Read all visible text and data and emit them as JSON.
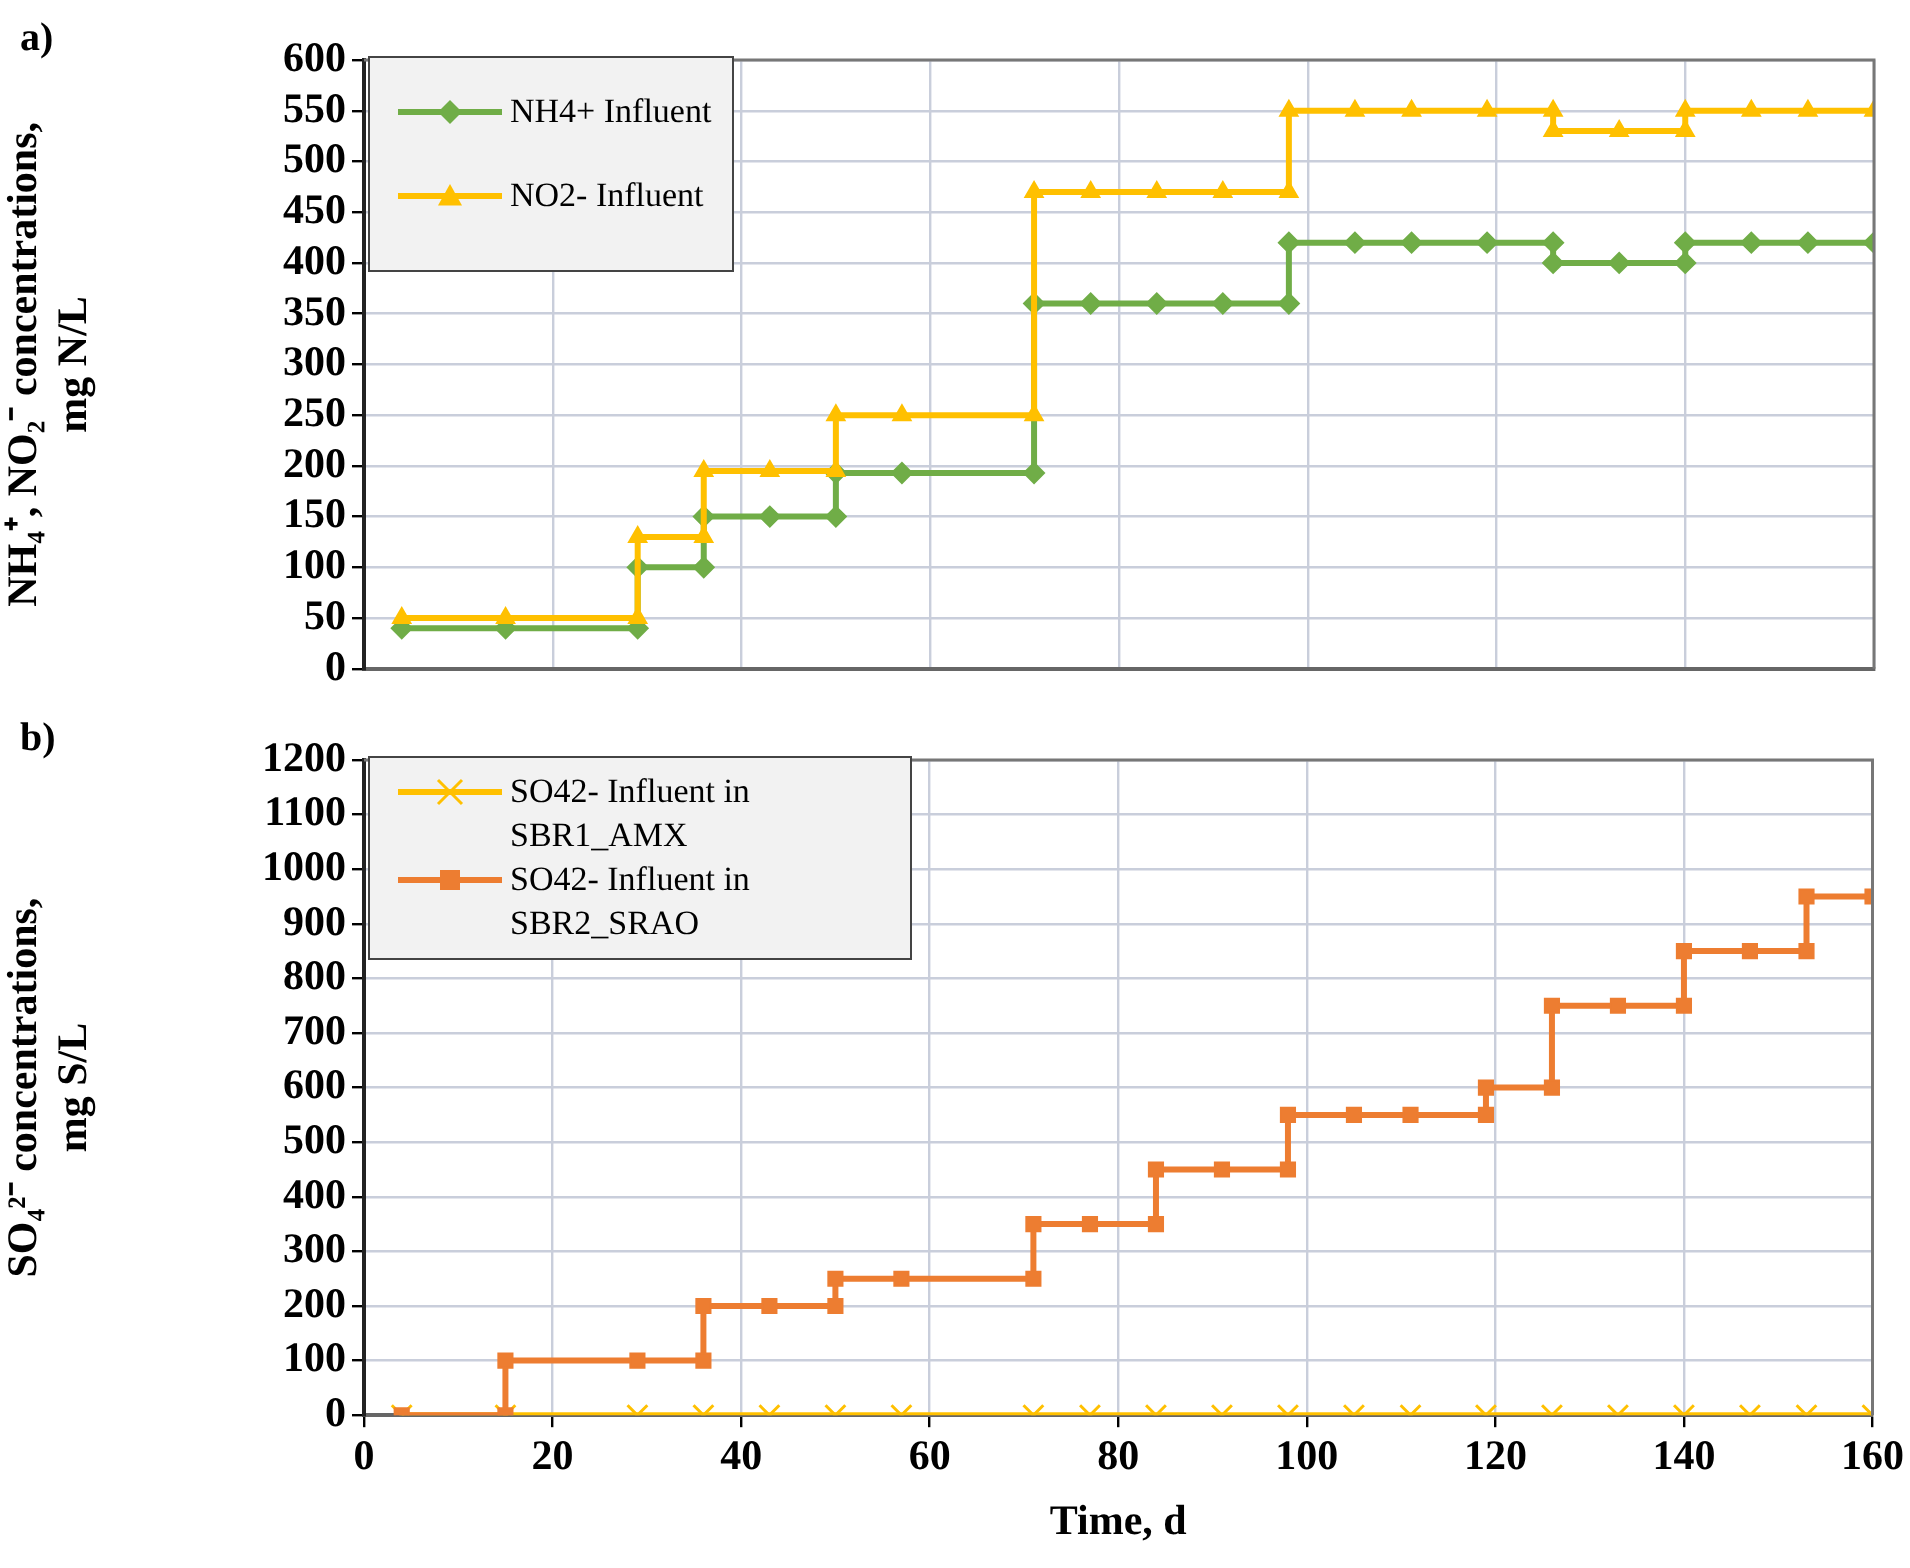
{
  "chart_data": [
    {
      "type": "line",
      "title": "a)",
      "ylabel": "NH₄⁺, NO₂⁻ concentrations,\nmg N/L",
      "xlim": [
        0,
        160
      ],
      "xticks": [
        0,
        20,
        40,
        60,
        80,
        100,
        120,
        140,
        160
      ],
      "ylim": [
        0,
        600
      ],
      "yticks": [
        0,
        50,
        100,
        150,
        200,
        250,
        300,
        350,
        400,
        450,
        500,
        550,
        600
      ],
      "grid": true,
      "legend": "top left",
      "tick_labels": "y",
      "series": [
        {
          "name": "NH4+ Influent",
          "color": "#70ad47",
          "marker": "diamond",
          "x": [
            4,
            15,
            29,
            29,
            36,
            36,
            43,
            50,
            50,
            57,
            71,
            71,
            77,
            84,
            91,
            98,
            98,
            105,
            111,
            119,
            126,
            126,
            133,
            140,
            140,
            147,
            153,
            160
          ],
          "values": [
            40,
            40,
            40,
            100,
            100,
            150,
            150,
            150,
            193,
            193,
            193,
            360,
            360,
            360,
            360,
            360,
            420,
            420,
            420,
            420,
            420,
            400,
            400,
            400,
            420,
            420,
            420,
            420
          ]
        },
        {
          "name": "NO2- Influent",
          "color": "#ffc000",
          "marker": "triangle",
          "x": [
            4,
            15,
            29,
            29,
            36,
            36,
            43,
            50,
            50,
            57,
            71,
            71,
            77,
            84,
            91,
            98,
            98,
            105,
            111,
            119,
            126,
            126,
            133,
            140,
            140,
            147,
            153,
            160
          ],
          "values": [
            50,
            50,
            50,
            130,
            130,
            195,
            195,
            195,
            250,
            250,
            250,
            470,
            470,
            470,
            470,
            470,
            550,
            550,
            550,
            550,
            550,
            530,
            530,
            530,
            550,
            550,
            550,
            550
          ]
        }
      ]
    },
    {
      "type": "line",
      "title": "b)",
      "xlabel": "Time, d",
      "ylabel": "SO₄²⁻ concentrations,\nmg S/L",
      "xlim": [
        0,
        160
      ],
      "xticks": [
        0,
        20,
        40,
        60,
        80,
        100,
        120,
        140,
        160
      ],
      "ylim": [
        0,
        1200
      ],
      "yticks": [
        0,
        100,
        200,
        300,
        400,
        500,
        600,
        700,
        800,
        900,
        1000,
        1100,
        1200
      ],
      "grid": true,
      "legend": "top left",
      "series": [
        {
          "name": "SO42- Influent in SBR1_AMX",
          "color": "#ffc000",
          "marker": "cross",
          "x": [
            4,
            15,
            29,
            36,
            43,
            50,
            57,
            71,
            77,
            84,
            91,
            98,
            105,
            111,
            119,
            126,
            133,
            140,
            147,
            153,
            160
          ],
          "values": [
            0,
            0,
            0,
            0,
            0,
            0,
            0,
            0,
            0,
            0,
            0,
            0,
            0,
            0,
            0,
            0,
            0,
            0,
            0,
            0,
            0
          ]
        },
        {
          "name": "SO42- Influent in SBR2_SRAO",
          "color": "#ed7d31",
          "marker": "square",
          "x": [
            4,
            15,
            15,
            29,
            36,
            36,
            43,
            50,
            50,
            57,
            71,
            71,
            77,
            84,
            84,
            91,
            98,
            98,
            105,
            111,
            119,
            119,
            126,
            126,
            133,
            140,
            140,
            147,
            153,
            153,
            160
          ],
          "values": [
            0,
            0,
            100,
            100,
            100,
            200,
            200,
            200,
            250,
            250,
            250,
            350,
            350,
            350,
            450,
            450,
            450,
            550,
            550,
            550,
            550,
            600,
            600,
            750,
            750,
            750,
            850,
            850,
            850,
            950,
            950
          ]
        }
      ]
    }
  ]
}
